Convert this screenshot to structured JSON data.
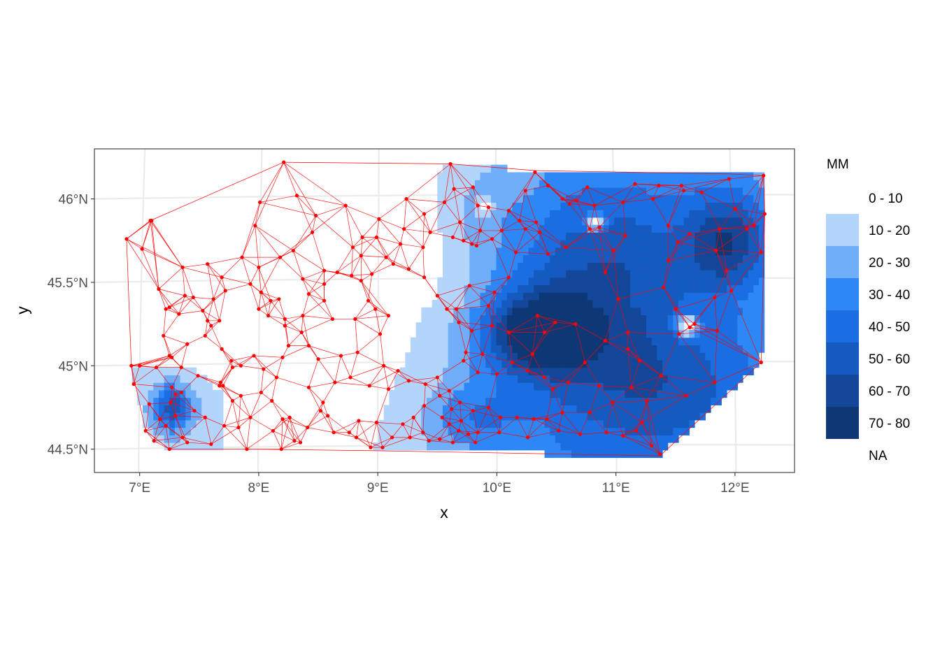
{
  "chart_data": {
    "type": "map",
    "title": "",
    "xlabel": "x",
    "ylabel": "y",
    "xlim": [
      6.62,
      12.5
    ],
    "ylim": [
      44.36,
      46.3
    ],
    "x_ticks": [
      {
        "value": 7,
        "label": "7°E"
      },
      {
        "value": 8,
        "label": "8°E"
      },
      {
        "value": 9,
        "label": "9°E"
      },
      {
        "value": 10,
        "label": "10°E"
      },
      {
        "value": 11,
        "label": "11°E"
      },
      {
        "value": 12,
        "label": "12°E"
      }
    ],
    "y_ticks": [
      {
        "value": 44.5,
        "label": "44.5°N"
      },
      {
        "value": 45,
        "label": "45°N"
      },
      {
        "value": 45.5,
        "label": "45.5°N"
      },
      {
        "value": 46,
        "label": "46°N"
      }
    ],
    "grid": true,
    "legend": {
      "title": "MM",
      "position": "right",
      "classes": [
        {
          "label": "0 - 10",
          "color": "#ffffff"
        },
        {
          "label": "10 - 20",
          "color": "#b3d5fb"
        },
        {
          "label": "20 - 30",
          "color": "#70aefa"
        },
        {
          "label": "30 - 40",
          "color": "#2e87f6"
        },
        {
          "label": "40 - 50",
          "color": "#1a6ee1"
        },
        {
          "label": "50 - 60",
          "color": "#155bbf"
        },
        {
          "label": "60 - 70",
          "color": "#12479a"
        },
        {
          "label": "70 - 80",
          "color": "#0e3775"
        },
        {
          "label": "NA",
          "color": "#ffffff"
        }
      ]
    },
    "triangulation_color": "#ff0000",
    "stations": [
      [
        6.89,
        45.76
      ],
      [
        7.02,
        45.7
      ],
      [
        7.09,
        45.87
      ],
      [
        7.1,
        45.87
      ],
      [
        7.16,
        45.46
      ],
      [
        7.22,
        45.34
      ],
      [
        7.2,
        45.18
      ],
      [
        7.25,
        45.06
      ],
      [
        6.93,
        45.0
      ],
      [
        7.0,
        45.0
      ],
      [
        7.14,
        44.99
      ],
      [
        6.95,
        44.89
      ],
      [
        7.08,
        44.77
      ],
      [
        7.05,
        44.61
      ],
      [
        7.12,
        44.55
      ],
      [
        7.17,
        44.68
      ],
      [
        7.26,
        44.78
      ],
      [
        7.22,
        44.64
      ],
      [
        7.3,
        44.7
      ],
      [
        7.36,
        44.57
      ],
      [
        7.25,
        44.5
      ],
      [
        7.4,
        44.54
      ],
      [
        7.27,
        44.87
      ],
      [
        7.3,
        44.83
      ],
      [
        7.35,
        44.84
      ],
      [
        7.46,
        44.73
      ],
      [
        7.55,
        44.69
      ],
      [
        7.6,
        44.53
      ],
      [
        7.71,
        44.64
      ],
      [
        7.83,
        44.63
      ],
      [
        7.68,
        44.9
      ],
      [
        7.7,
        44.88
      ],
      [
        7.78,
        44.79
      ],
      [
        7.85,
        44.82
      ],
      [
        7.93,
        44.69
      ],
      [
        7.9,
        44.5
      ],
      [
        7.67,
        44.88
      ],
      [
        7.49,
        44.94
      ],
      [
        7.35,
        44.99
      ],
      [
        7.27,
        45.05
      ],
      [
        7.4,
        45.13
      ],
      [
        7.55,
        45.18
      ],
      [
        7.6,
        45.24
      ],
      [
        7.67,
        45.27
      ],
      [
        7.69,
        45.1
      ],
      [
        7.77,
        45.03
      ],
      [
        7.85,
        45.0
      ],
      [
        7.96,
        45.06
      ],
      [
        7.78,
        44.99
      ],
      [
        7.53,
        45.33
      ],
      [
        7.57,
        45.27
      ],
      [
        7.45,
        45.41
      ],
      [
        7.62,
        45.4
      ],
      [
        7.72,
        45.45
      ],
      [
        7.38,
        45.42
      ],
      [
        7.33,
        45.31
      ],
      [
        7.25,
        45.35
      ],
      [
        7.36,
        45.59
      ],
      [
        7.57,
        45.61
      ],
      [
        7.69,
        45.53
      ],
      [
        7.86,
        45.65
      ],
      [
        7.93,
        45.49
      ],
      [
        7.97,
        45.84
      ],
      [
        8.01,
        45.98
      ],
      [
        8.0,
        45.59
      ],
      [
        8.02,
        45.44
      ],
      [
        8.18,
        45.65
      ],
      [
        8.29,
        45.69
      ],
      [
        8.37,
        45.52
      ],
      [
        8.1,
        45.39
      ],
      [
        8.17,
        45.4
      ],
      [
        8.0,
        45.34
      ],
      [
        8.08,
        45.3
      ],
      [
        8.25,
        45.12
      ],
      [
        8.22,
        45.28
      ],
      [
        8.22,
        45.24
      ],
      [
        8.2,
        45.05
      ],
      [
        8.15,
        44.93
      ],
      [
        8.04,
        44.98
      ],
      [
        8.02,
        44.84
      ],
      [
        8.11,
        44.79
      ],
      [
        8.2,
        44.68
      ],
      [
        8.26,
        44.69
      ],
      [
        8.12,
        44.61
      ],
      [
        8.3,
        44.55
      ],
      [
        8.19,
        44.5
      ],
      [
        8.35,
        44.54
      ],
      [
        8.41,
        44.63
      ],
      [
        8.52,
        44.73
      ],
      [
        8.58,
        44.7
      ],
      [
        8.63,
        44.6
      ],
      [
        8.76,
        44.6
      ],
      [
        8.84,
        44.67
      ],
      [
        8.82,
        44.57
      ],
      [
        8.99,
        44.66
      ],
      [
        8.94,
        44.51
      ],
      [
        9.04,
        44.51
      ],
      [
        9.12,
        44.57
      ],
      [
        9.21,
        44.65
      ],
      [
        9.27,
        44.57
      ],
      [
        9.3,
        44.69
      ],
      [
        9.39,
        44.76
      ],
      [
        9.38,
        44.6
      ],
      [
        9.43,
        44.55
      ],
      [
        9.52,
        44.56
      ],
      [
        9.54,
        44.69
      ],
      [
        9.6,
        44.65
      ],
      [
        9.63,
        44.54
      ],
      [
        9.62,
        44.74
      ],
      [
        9.7,
        44.67
      ],
      [
        9.68,
        44.61
      ],
      [
        9.76,
        44.59
      ],
      [
        9.84,
        44.6
      ],
      [
        9.82,
        44.54
      ],
      [
        9.8,
        44.73
      ],
      [
        9.93,
        44.75
      ],
      [
        10.03,
        44.69
      ],
      [
        10.02,
        44.6
      ],
      [
        10.17,
        44.69
      ],
      [
        10.26,
        44.57
      ],
      [
        10.31,
        44.68
      ],
      [
        10.42,
        44.68
      ],
      [
        10.52,
        44.61
      ],
      [
        10.55,
        44.72
      ],
      [
        10.7,
        44.59
      ],
      [
        10.78,
        44.72
      ],
      [
        10.92,
        44.6
      ],
      [
        11.06,
        44.58
      ],
      [
        11.17,
        44.61
      ],
      [
        11.3,
        44.52
      ],
      [
        11.37,
        44.47
      ],
      [
        11.22,
        44.66
      ],
      [
        11.13,
        44.87
      ],
      [
        11.26,
        44.79
      ],
      [
        11.38,
        44.94
      ],
      [
        11.59,
        44.82
      ],
      [
        11.83,
        44.9
      ],
      [
        12.22,
        45.02
      ],
      [
        12.22,
        45.68
      ],
      [
        12.25,
        45.91
      ],
      [
        12.24,
        46.14
      ],
      [
        12.16,
        45.84
      ],
      [
        12.1,
        45.82
      ],
      [
        11.95,
        46.12
      ],
      [
        12.0,
        45.94
      ],
      [
        11.87,
        45.82
      ],
      [
        11.84,
        45.69
      ],
      [
        11.93,
        45.57
      ],
      [
        11.97,
        45.45
      ],
      [
        11.83,
        45.41
      ],
      [
        11.85,
        45.21
      ],
      [
        11.66,
        45.25
      ],
      [
        11.62,
        45.23
      ],
      [
        11.53,
        45.19
      ],
      [
        11.5,
        45.34
      ],
      [
        11.4,
        45.47
      ],
      [
        11.44,
        45.63
      ],
      [
        11.52,
        45.74
      ],
      [
        11.62,
        45.79
      ],
      [
        11.44,
        45.84
      ],
      [
        11.57,
        46.05
      ],
      [
        11.72,
        46.04
      ],
      [
        11.55,
        46.08
      ],
      [
        11.36,
        46.08
      ],
      [
        11.31,
        46.0
      ],
      [
        11.16,
        46.09
      ],
      [
        11.06,
        45.98
      ],
      [
        11.08,
        45.78
      ],
      [
        10.98,
        45.69
      ],
      [
        10.91,
        45.56
      ],
      [
        11.02,
        45.4
      ],
      [
        11.1,
        45.2
      ],
      [
        11.2,
        45.03
      ],
      [
        11.1,
        45.1
      ],
      [
        10.91,
        45.15
      ],
      [
        10.74,
        45.02
      ],
      [
        10.66,
        45.25
      ],
      [
        10.49,
        45.26
      ],
      [
        10.4,
        45.2
      ],
      [
        10.34,
        45.3
      ],
      [
        10.3,
        45.07
      ],
      [
        10.1,
        45.2
      ],
      [
        9.96,
        45.24
      ],
      [
        9.88,
        45.07
      ],
      [
        9.74,
        45.08
      ],
      [
        9.66,
        45.34
      ],
      [
        9.77,
        45.48
      ],
      [
        9.83,
        45.72
      ],
      [
        9.79,
        45.73
      ],
      [
        9.86,
        45.81
      ],
      [
        9.72,
        45.75
      ],
      [
        9.69,
        45.86
      ],
      [
        9.64,
        46.06
      ],
      [
        9.8,
        46.07
      ],
      [
        9.84,
        45.96
      ],
      [
        9.93,
        45.95
      ],
      [
        9.96,
        45.76
      ],
      [
        10.04,
        45.81
      ],
      [
        10.1,
        45.93
      ],
      [
        10.24,
        46.05
      ],
      [
        10.19,
        45.87
      ],
      [
        10.33,
        45.86
      ],
      [
        10.32,
        46.16
      ],
      [
        10.43,
        46.08
      ],
      [
        10.55,
        46.0
      ],
      [
        10.61,
        45.97
      ],
      [
        10.67,
        45.99
      ],
      [
        10.76,
        46.07
      ],
      [
        10.82,
        45.96
      ],
      [
        10.86,
        45.83
      ],
      [
        10.78,
        45.82
      ],
      [
        10.58,
        45.71
      ],
      [
        10.43,
        45.67
      ],
      [
        10.36,
        45.8
      ],
      [
        10.24,
        45.82
      ],
      [
        10.16,
        45.68
      ],
      [
        10.1,
        45.53
      ],
      [
        9.98,
        45.44
      ],
      [
        9.93,
        45.36
      ],
      [
        9.79,
        45.21
      ],
      [
        9.68,
        45.26
      ],
      [
        9.58,
        45.34
      ],
      [
        9.5,
        45.42
      ],
      [
        9.39,
        45.53
      ],
      [
        9.38,
        45.71
      ],
      [
        9.44,
        45.8
      ],
      [
        9.39,
        45.91
      ],
      [
        9.56,
        45.98
      ],
      [
        9.63,
        45.77
      ],
      [
        9.61,
        46.21
      ],
      [
        9.24,
        46.0
      ],
      [
        9.22,
        45.82
      ],
      [
        9.19,
        45.73
      ],
      [
        9.26,
        45.58
      ],
      [
        9.13,
        45.61
      ],
      [
        9.07,
        45.65
      ],
      [
        8.99,
        45.77
      ],
      [
        9.01,
        45.88
      ],
      [
        8.87,
        45.77
      ],
      [
        8.86,
        45.66
      ],
      [
        8.86,
        45.51
      ],
      [
        8.95,
        45.55
      ],
      [
        8.78,
        45.54
      ],
      [
        8.66,
        45.56
      ],
      [
        8.55,
        45.49
      ],
      [
        8.55,
        45.57
      ],
      [
        8.45,
        45.8
      ],
      [
        8.48,
        45.9
      ],
      [
        8.32,
        46.02
      ],
      [
        8.21,
        46.22
      ],
      [
        8.73,
        45.96
      ],
      [
        8.79,
        45.71
      ],
      [
        8.98,
        45.34
      ],
      [
        8.92,
        45.39
      ],
      [
        8.81,
        45.28
      ],
      [
        8.62,
        45.28
      ],
      [
        8.55,
        45.39
      ],
      [
        8.42,
        45.43
      ],
      [
        8.37,
        45.3
      ],
      [
        8.36,
        45.2
      ],
      [
        8.42,
        45.12
      ],
      [
        8.5,
        45.04
      ],
      [
        8.69,
        45.06
      ],
      [
        8.83,
        45.08
      ],
      [
        9.02,
        45.19
      ],
      [
        9.09,
        45.3
      ],
      [
        9.05,
        45.0
      ],
      [
        9.17,
        44.97
      ],
      [
        9.26,
        44.91
      ],
      [
        9.09,
        44.86
      ],
      [
        8.93,
        44.88
      ],
      [
        8.77,
        44.93
      ],
      [
        8.64,
        44.9
      ],
      [
        8.54,
        44.78
      ],
      [
        8.42,
        44.87
      ],
      [
        9.4,
        44.89
      ],
      [
        9.52,
        44.82
      ],
      [
        9.5,
        44.93
      ],
      [
        9.6,
        44.85
      ],
      [
        9.69,
        44.78
      ],
      [
        9.72,
        45.03
      ],
      [
        9.84,
        44.96
      ],
      [
        10.0,
        44.95
      ],
      [
        10.13,
        45.02
      ],
      [
        10.26,
        44.97
      ],
      [
        10.4,
        44.93
      ],
      [
        10.47,
        44.86
      ],
      [
        10.6,
        44.9
      ],
      [
        10.86,
        44.88
      ],
      [
        10.97,
        44.78
      ]
    ]
  }
}
